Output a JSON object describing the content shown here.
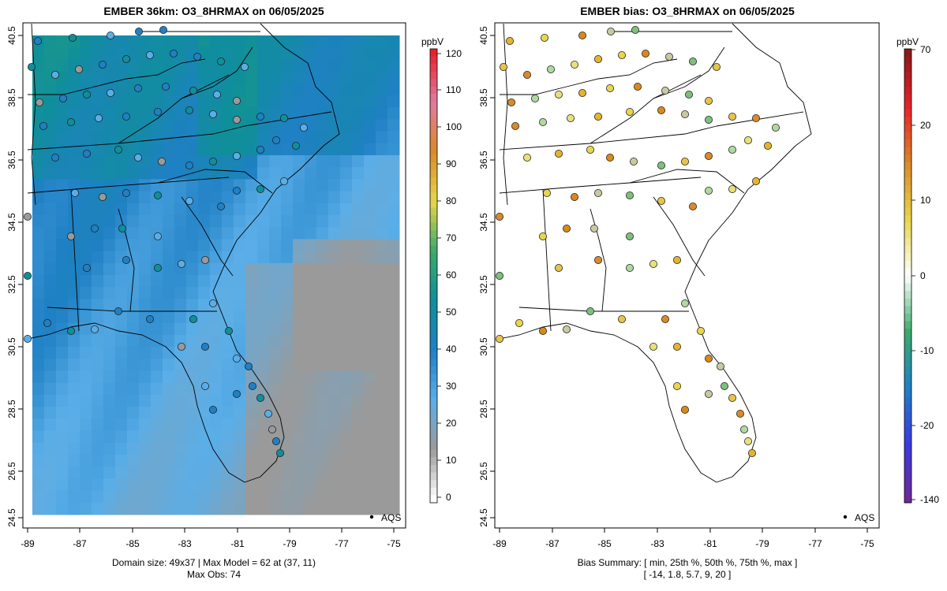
{
  "chart_data": [
    {
      "type": "heatmap",
      "title": "EMBER 36km: O3_8HRMAX on 06/05/2025",
      "units": "ppbV",
      "x_ticks": [
        "-89",
        "-87",
        "-85",
        "-83",
        "-81",
        "-79",
        "-77",
        "-75"
      ],
      "y_ticks": [
        "40.5",
        "38.5",
        "36.5",
        "34.5",
        "32.5",
        "30.5",
        "28.5",
        "26.5",
        "24.5"
      ],
      "xlim": [
        -89.2,
        -74.6
      ],
      "ylim": [
        24.4,
        40.6
      ],
      "colorbar_ticks": [
        "0",
        "10",
        "20",
        "30",
        "40",
        "50",
        "60",
        "70",
        "80",
        "90",
        "100",
        "110",
        "120"
      ],
      "colorbar_range": [
        0,
        120
      ],
      "legend": "AQS",
      "footer_line1": "Domain size: 49x37 | Max Model = 62 at (37, 11)",
      "footer_line2": "Max Obs: 74"
    },
    {
      "type": "scatter",
      "title": "EMBER bias: O3_8HRMAX on 06/05/2025",
      "units": "ppbV",
      "x_ticks": [
        "-89",
        "-87",
        "-85",
        "-83",
        "-81",
        "-79",
        "-77",
        "-75"
      ],
      "y_ticks": [
        "40.5",
        "38.5",
        "36.5",
        "34.5",
        "32.5",
        "30.5",
        "28.5",
        "26.5",
        "24.5"
      ],
      "xlim": [
        -89.2,
        -74.6
      ],
      "ylim": [
        24.4,
        40.6
      ],
      "colorbar_ticks": [
        "70",
        "20",
        "10",
        "0",
        "-10",
        "-20",
        "-140"
      ],
      "legend": "AQS",
      "footer_line1": "Bias Summary: [ min, 25th %, 50th %, 75th %, max ]",
      "footer_line2": "[ -14,   1.8,   5.7,   9,   20 ]",
      "bias_summary": {
        "min": -14,
        "p25": 1.8,
        "p50": 5.7,
        "p75": 9,
        "max": 20
      }
    }
  ],
  "colors": {
    "gray": "#9a9a9a",
    "lightblue": "#5aaee8",
    "blue": "#1f80c4",
    "teal": "#0f8f9a",
    "green": "#3caa6a",
    "yellow": "#e8d64a",
    "orange": "#d9891a",
    "red": "#e8222a"
  }
}
